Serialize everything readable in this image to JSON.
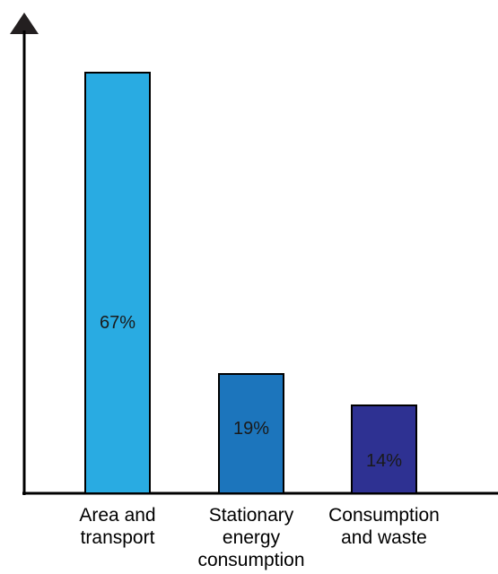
{
  "chart_data": {
    "type": "bar",
    "categories": [
      [
        "Area and",
        "transport"
      ],
      [
        "Stationary",
        "energy",
        "consumption"
      ],
      [
        "Consumption",
        "and waste"
      ]
    ],
    "values": [
      67,
      19,
      14
    ],
    "value_labels": [
      "67%",
      "19%",
      "14%"
    ],
    "colors": [
      "#29abe2",
      "#1c75bc",
      "#2e3192"
    ],
    "unit": "%",
    "ylim": [
      0,
      67
    ],
    "grid": false,
    "legend": "none",
    "title": "",
    "xlabel": "",
    "ylabel": ""
  }
}
